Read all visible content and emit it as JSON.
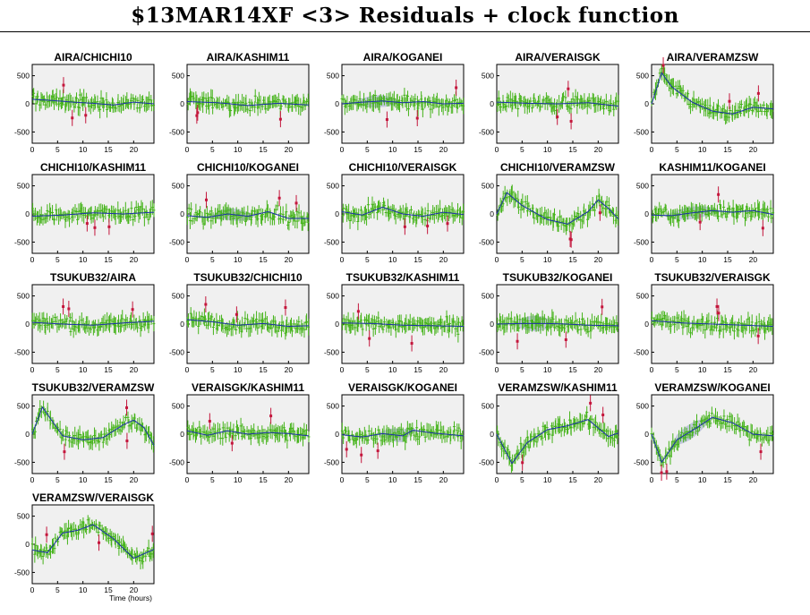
{
  "title": "$13MAR14XF <3> Residuals + clock function",
  "chart_data": {
    "type": "scatter",
    "layout": "small-multiples",
    "columns": 5,
    "background": "#f0f0f0",
    "colors": {
      "points": "#44b319",
      "outliers": "#c4163c",
      "clock": "#1c2fa8",
      "band": "#b8bfd8"
    },
    "xlabel": "Time (hours)",
    "xlim": [
      0,
      24
    ],
    "xticks": [
      0,
      5,
      10,
      15,
      20
    ],
    "ylim": [
      -700,
      700
    ],
    "yticks": [
      500,
      0,
      -500
    ],
    "panels": [
      {
        "title": "AIRA/CHICHI10",
        "clock": [
          [
            0,
            80
          ],
          [
            4,
            60
          ],
          [
            8,
            30
          ],
          [
            12,
            10
          ],
          [
            16,
            -20
          ],
          [
            20,
            30
          ],
          [
            24,
            0
          ]
        ],
        "band": 0
      },
      {
        "title": "AIRA/KASHIM11",
        "clock": [
          [
            0,
            40
          ],
          [
            6,
            20
          ],
          [
            12,
            -30
          ],
          [
            18,
            10
          ],
          [
            24,
            -20
          ]
        ],
        "band": 0
      },
      {
        "title": "AIRA/KOGANEI",
        "clock": [
          [
            0,
            0
          ],
          [
            4,
            30
          ],
          [
            8,
            50
          ],
          [
            12,
            20
          ],
          [
            16,
            40
          ],
          [
            20,
            0
          ],
          [
            24,
            10
          ]
        ],
        "band": 110,
        "band_range": [
          2,
          12
        ]
      },
      {
        "title": "AIRA/VERAISGK",
        "clock": [
          [
            0,
            30
          ],
          [
            6,
            10
          ],
          [
            12,
            0
          ],
          [
            18,
            20
          ],
          [
            24,
            -40
          ]
        ],
        "band": 0
      },
      {
        "title": "AIRA/VERAMZSW",
        "clock": [
          [
            0,
            0
          ],
          [
            2,
            550
          ],
          [
            4,
            300
          ],
          [
            8,
            30
          ],
          [
            12,
            -130
          ],
          [
            16,
            -180
          ],
          [
            20,
            -60
          ],
          [
            24,
            -90
          ]
        ],
        "band": 0
      },
      {
        "title": "CHICHI10/KASHIM11",
        "clock": [
          [
            0,
            -40
          ],
          [
            6,
            -20
          ],
          [
            12,
            20
          ],
          [
            18,
            0
          ],
          [
            24,
            30
          ]
        ],
        "band": 0
      },
      {
        "title": "CHICHI10/KOGANEI",
        "clock": [
          [
            0,
            -30
          ],
          [
            4,
            -60
          ],
          [
            8,
            0
          ],
          [
            12,
            -40
          ],
          [
            16,
            40
          ],
          [
            20,
            -80
          ],
          [
            24,
            -80
          ]
        ],
        "band": 110,
        "band_range": [
          4,
          14
        ]
      },
      {
        "title": "CHICHI10/VERAISGK",
        "clock": [
          [
            0,
            40
          ],
          [
            4,
            -20
          ],
          [
            8,
            120
          ],
          [
            12,
            0
          ],
          [
            16,
            -40
          ],
          [
            20,
            30
          ],
          [
            24,
            -10
          ]
        ],
        "band": 0
      },
      {
        "title": "CHICHI10/VERAMZSW",
        "clock": [
          [
            0,
            0
          ],
          [
            2,
            380
          ],
          [
            5,
            150
          ],
          [
            10,
            -100
          ],
          [
            14,
            -180
          ],
          [
            18,
            40
          ],
          [
            20,
            250
          ],
          [
            22,
            100
          ],
          [
            24,
            -90
          ]
        ],
        "band": 0
      },
      {
        "title": "KASHIM11/KOGANEI",
        "clock": [
          [
            0,
            -20
          ],
          [
            4,
            -30
          ],
          [
            8,
            20
          ],
          [
            12,
            60
          ],
          [
            16,
            30
          ],
          [
            20,
            60
          ],
          [
            24,
            -10
          ]
        ],
        "band": 110,
        "band_range": [
          2,
          14
        ]
      },
      {
        "title": "TSUKUB32/AIRA",
        "clock": [
          [
            0,
            30
          ],
          [
            6,
            0
          ],
          [
            12,
            -20
          ],
          [
            18,
            20
          ],
          [
            24,
            50
          ]
        ],
        "band": 0
      },
      {
        "title": "TSUKUB32/CHICHI10",
        "clock": [
          [
            0,
            80
          ],
          [
            5,
            40
          ],
          [
            10,
            -20
          ],
          [
            15,
            10
          ],
          [
            20,
            -40
          ],
          [
            24,
            -30
          ]
        ],
        "band": 0
      },
      {
        "title": "TSUKUB32/KASHIM11",
        "clock": [
          [
            0,
            20
          ],
          [
            6,
            10
          ],
          [
            12,
            -20
          ],
          [
            18,
            -30
          ],
          [
            24,
            -40
          ]
        ],
        "band": 0
      },
      {
        "title": "TSUKUB32/KOGANEI",
        "clock": [
          [
            0,
            0
          ],
          [
            5,
            10
          ],
          [
            10,
            10
          ],
          [
            14,
            0
          ],
          [
            18,
            -20
          ],
          [
            24,
            -30
          ]
        ],
        "band": 140,
        "band_range": [
          3,
          12
        ]
      },
      {
        "title": "TSUKUB32/VERAISGK",
        "clock": [
          [
            0,
            60
          ],
          [
            6,
            20
          ],
          [
            12,
            0
          ],
          [
            18,
            -20
          ],
          [
            24,
            -40
          ]
        ],
        "band": 0
      },
      {
        "title": "TSUKUB32/VERAMZSW",
        "clock": [
          [
            0,
            0
          ],
          [
            2,
            480
          ],
          [
            6,
            -30
          ],
          [
            10,
            -100
          ],
          [
            14,
            -60
          ],
          [
            18,
            170
          ],
          [
            20,
            250
          ],
          [
            22,
            120
          ],
          [
            24,
            -200
          ]
        ],
        "band": 0
      },
      {
        "title": "VERAISGK/KASHIM11",
        "clock": [
          [
            0,
            60
          ],
          [
            4,
            -20
          ],
          [
            8,
            60
          ],
          [
            12,
            0
          ],
          [
            16,
            30
          ],
          [
            20,
            10
          ],
          [
            24,
            -30
          ]
        ],
        "band": 0
      },
      {
        "title": "VERAISGK/KOGANEI",
        "clock": [
          [
            0,
            -10
          ],
          [
            4,
            -50
          ],
          [
            8,
            10
          ],
          [
            12,
            -30
          ],
          [
            14,
            70
          ],
          [
            18,
            20
          ],
          [
            24,
            -30
          ]
        ],
        "band": 120,
        "band_range": [
          7,
          15
        ]
      },
      {
        "title": "VERAMZSW/KASHIM11",
        "clock": [
          [
            0,
            0
          ],
          [
            3,
            -520
          ],
          [
            6,
            -150
          ],
          [
            10,
            80
          ],
          [
            14,
            150
          ],
          [
            18,
            260
          ],
          [
            22,
            -40
          ],
          [
            24,
            20
          ]
        ],
        "band": 0
      },
      {
        "title": "VERAMZSW/KOGANEI",
        "clock": [
          [
            0,
            0
          ],
          [
            2,
            -500
          ],
          [
            5,
            -100
          ],
          [
            9,
            120
          ],
          [
            12,
            300
          ],
          [
            16,
            200
          ],
          [
            20,
            0
          ],
          [
            24,
            -30
          ]
        ],
        "band": 140,
        "band_range": [
          3,
          12
        ]
      },
      {
        "title": "VERAMZSW/VERAISGK",
        "clock": [
          [
            0,
            -100
          ],
          [
            3,
            -150
          ],
          [
            6,
            200
          ],
          [
            9,
            250
          ],
          [
            12,
            350
          ],
          [
            16,
            100
          ],
          [
            20,
            -250
          ],
          [
            24,
            -90
          ]
        ],
        "band": 0
      }
    ]
  }
}
